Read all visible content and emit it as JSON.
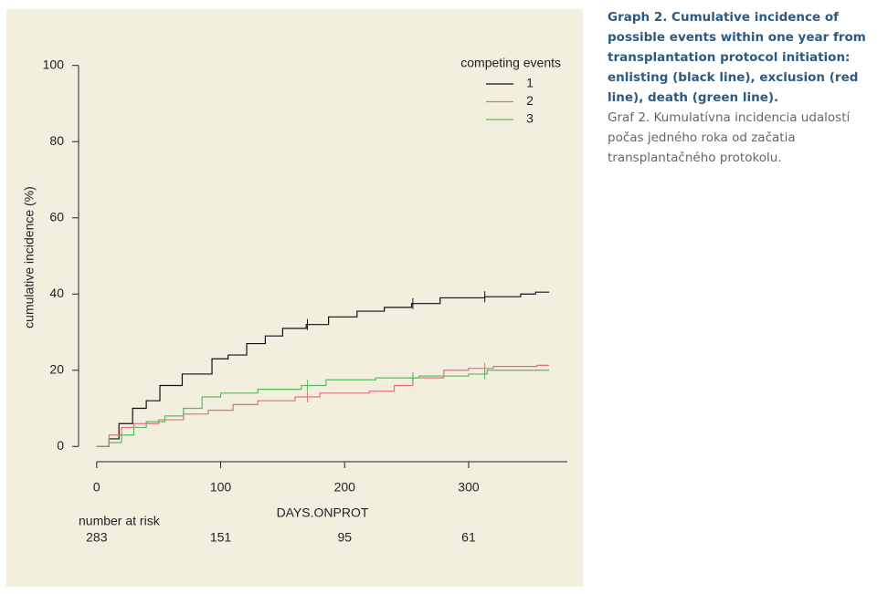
{
  "chart_data": {
    "type": "step",
    "xlabel": "DAYS.ONPROT",
    "ylabel": "cumulative incidence (%)",
    "xlim": [
      -14.6,
      379.6
    ],
    "xticks": [
      0,
      100,
      200,
      300
    ],
    "ylim": [
      -4,
      104
    ],
    "yticks": [
      0,
      20,
      40,
      60,
      80,
      100
    ],
    "legend_title": "competing events",
    "legend": "topright",
    "risk_label": "number at risk",
    "at_risk": [
      283,
      151,
      95,
      61
    ],
    "series": [
      {
        "name": "1",
        "color": "#111111",
        "x": [
          0,
          10,
          18,
          29,
          40,
          51,
          69,
          84,
          93,
          106,
          121,
          136,
          150,
          169,
          187,
          210,
          232,
          254,
          277,
          313,
          342,
          354,
          365
        ],
        "values": [
          0,
          2,
          6,
          10,
          12,
          16,
          19,
          19,
          23,
          24,
          27,
          29,
          31,
          32,
          34,
          35.5,
          36.5,
          37.5,
          39,
          39.3,
          40,
          40.5,
          40.5
        ],
        "censored": [
          170,
          255,
          313
        ]
      },
      {
        "name": "2",
        "color": "#e07080",
        "x": [
          0,
          10,
          20,
          30,
          50,
          70,
          90,
          110,
          130,
          160,
          180,
          220,
          240,
          255,
          280,
          300,
          320,
          355,
          365
        ],
        "values": [
          0,
          3,
          5,
          6,
          7,
          8.5,
          9.5,
          11,
          12,
          13,
          14,
          14.5,
          16,
          18,
          20,
          20.5,
          21,
          21.3,
          21.3
        ],
        "censored": [
          170,
          255,
          313
        ]
      },
      {
        "name": "3",
        "color": "#5cb85c",
        "x": [
          0,
          10,
          20,
          30,
          40,
          55,
          70,
          85,
          100,
          130,
          165,
          185,
          225,
          260,
          300,
          315,
          365
        ],
        "values": [
          0,
          1,
          3,
          5,
          6.5,
          8,
          10,
          13,
          14,
          15,
          16,
          17.5,
          18,
          18.5,
          19,
          20,
          20
        ],
        "censored": [
          170,
          255,
          313
        ]
      }
    ]
  },
  "caption": {
    "en": "Graph 2. Cumulative incidence of possible events within one year from transplantation protocol initiation: enlisting (black line), exclusion (red line), death (green line).",
    "sk": "Graf 2. Kumulatívna incidencia udalostí počas jedného roka od začatia transplantačného protokolu."
  }
}
